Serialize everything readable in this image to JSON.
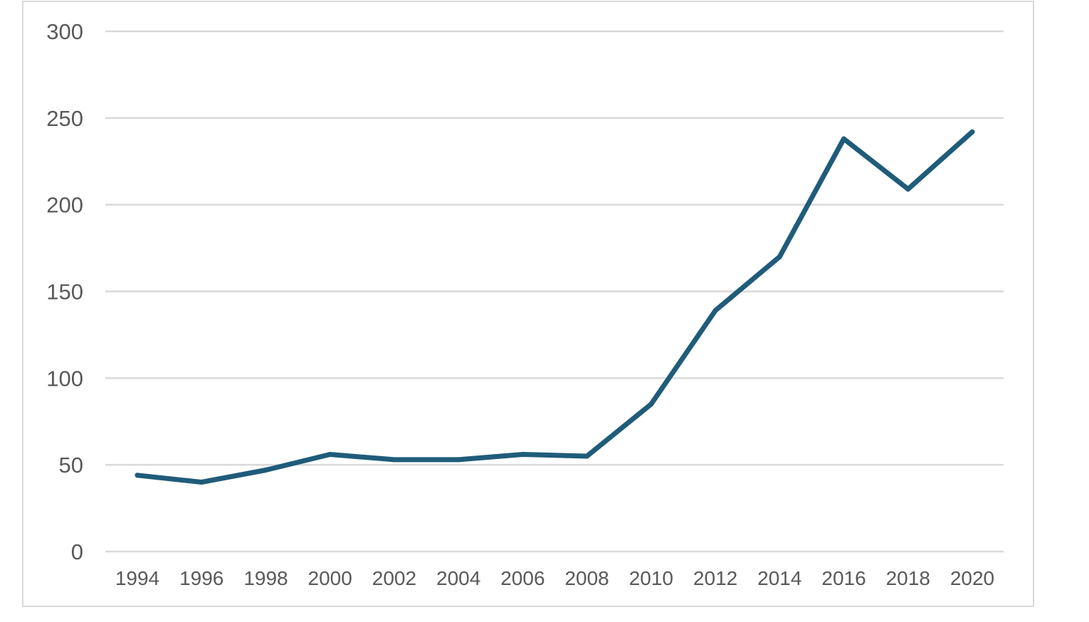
{
  "chart_data": {
    "type": "line",
    "title": "",
    "xlabel": "",
    "ylabel": "",
    "x": [
      1994,
      1996,
      1998,
      2000,
      2002,
      2004,
      2006,
      2008,
      2010,
      2012,
      2014,
      2016,
      2018,
      2020
    ],
    "series": [
      {
        "name": "",
        "color": "#1f5c7a",
        "values": [
          44,
          40,
          47,
          56,
          53,
          53,
          56,
          55,
          85,
          139,
          170,
          238,
          209,
          242
        ]
      }
    ],
    "ylim": [
      0,
      300
    ],
    "yticks": [
      0,
      50,
      100,
      150,
      200,
      250,
      300
    ],
    "xtick_labels": [
      "1994",
      "1996",
      "1998",
      "2000",
      "2002",
      "2004",
      "2006",
      "2008",
      "2010",
      "2012",
      "2014",
      "2016",
      "2018",
      "2020"
    ],
    "grid": true,
    "gridline_color": "#d9d9d9",
    "legend": "none"
  }
}
